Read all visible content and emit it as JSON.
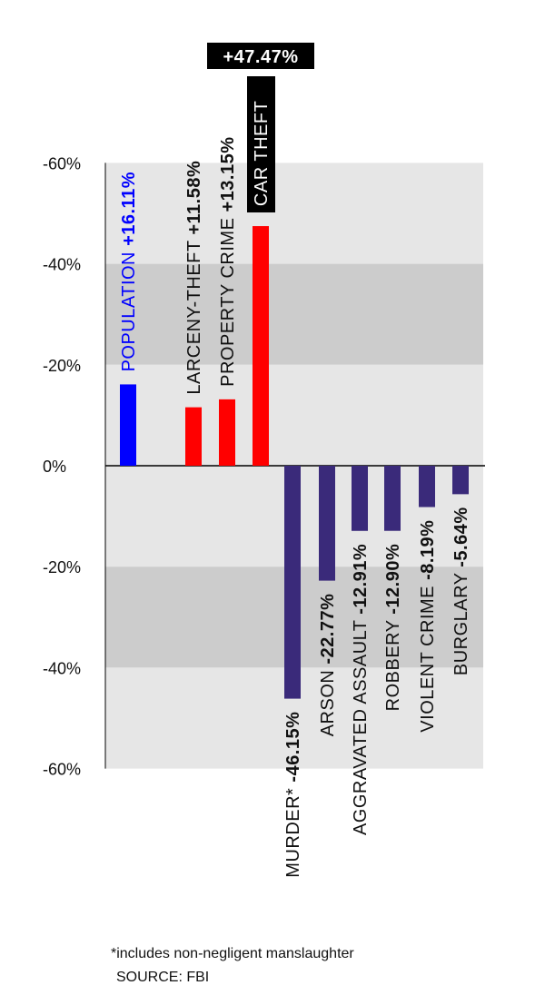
{
  "chart_data": {
    "type": "bar",
    "ylim": [
      -60,
      60
    ],
    "y_ticks": [
      -60,
      -40,
      -20,
      0,
      -20,
      -40,
      -60
    ],
    "y_tick_labels": [
      "-60%",
      "-40%",
      "-20%",
      "0%",
      "-20%",
      "-40%",
      "-60%"
    ],
    "grid": "alternating bands",
    "categories": [
      "POPULATION",
      "LARCENY-THEFT",
      "PROPERTY CRIME",
      "CAR THEFT",
      "MURDER*",
      "ARSON",
      "AGGRAVATED ASSAULT",
      "ROBBERY",
      "VIOLENT CRIME",
      "BURGLARY"
    ],
    "values": [
      16.11,
      11.58,
      13.15,
      47.47,
      -46.15,
      -22.77,
      -12.91,
      -12.9,
      -8.19,
      -5.64
    ],
    "value_labels": [
      "+16.11%",
      "+11.58%",
      "+13.15%",
      "+47.47%",
      "-46.15%",
      "-22.77%",
      "-12.91%",
      "-12.90%",
      "-8.19%",
      "-5.64%"
    ],
    "annotations": [
      "*includes non-negligent manslaughter",
      "SOURCE: FBI"
    ]
  },
  "colors": {
    "population": "#0000ff",
    "increase": "#ff0000",
    "decrease": "#3a2a7a",
    "band_light": "#e6e6e6",
    "band_dark": "#cccccc",
    "callout_bg": "#000000",
    "callout_text": "#ffffff"
  },
  "footnote": "*includes non-negligent manslaughter",
  "source": "SOURCE: FBI"
}
